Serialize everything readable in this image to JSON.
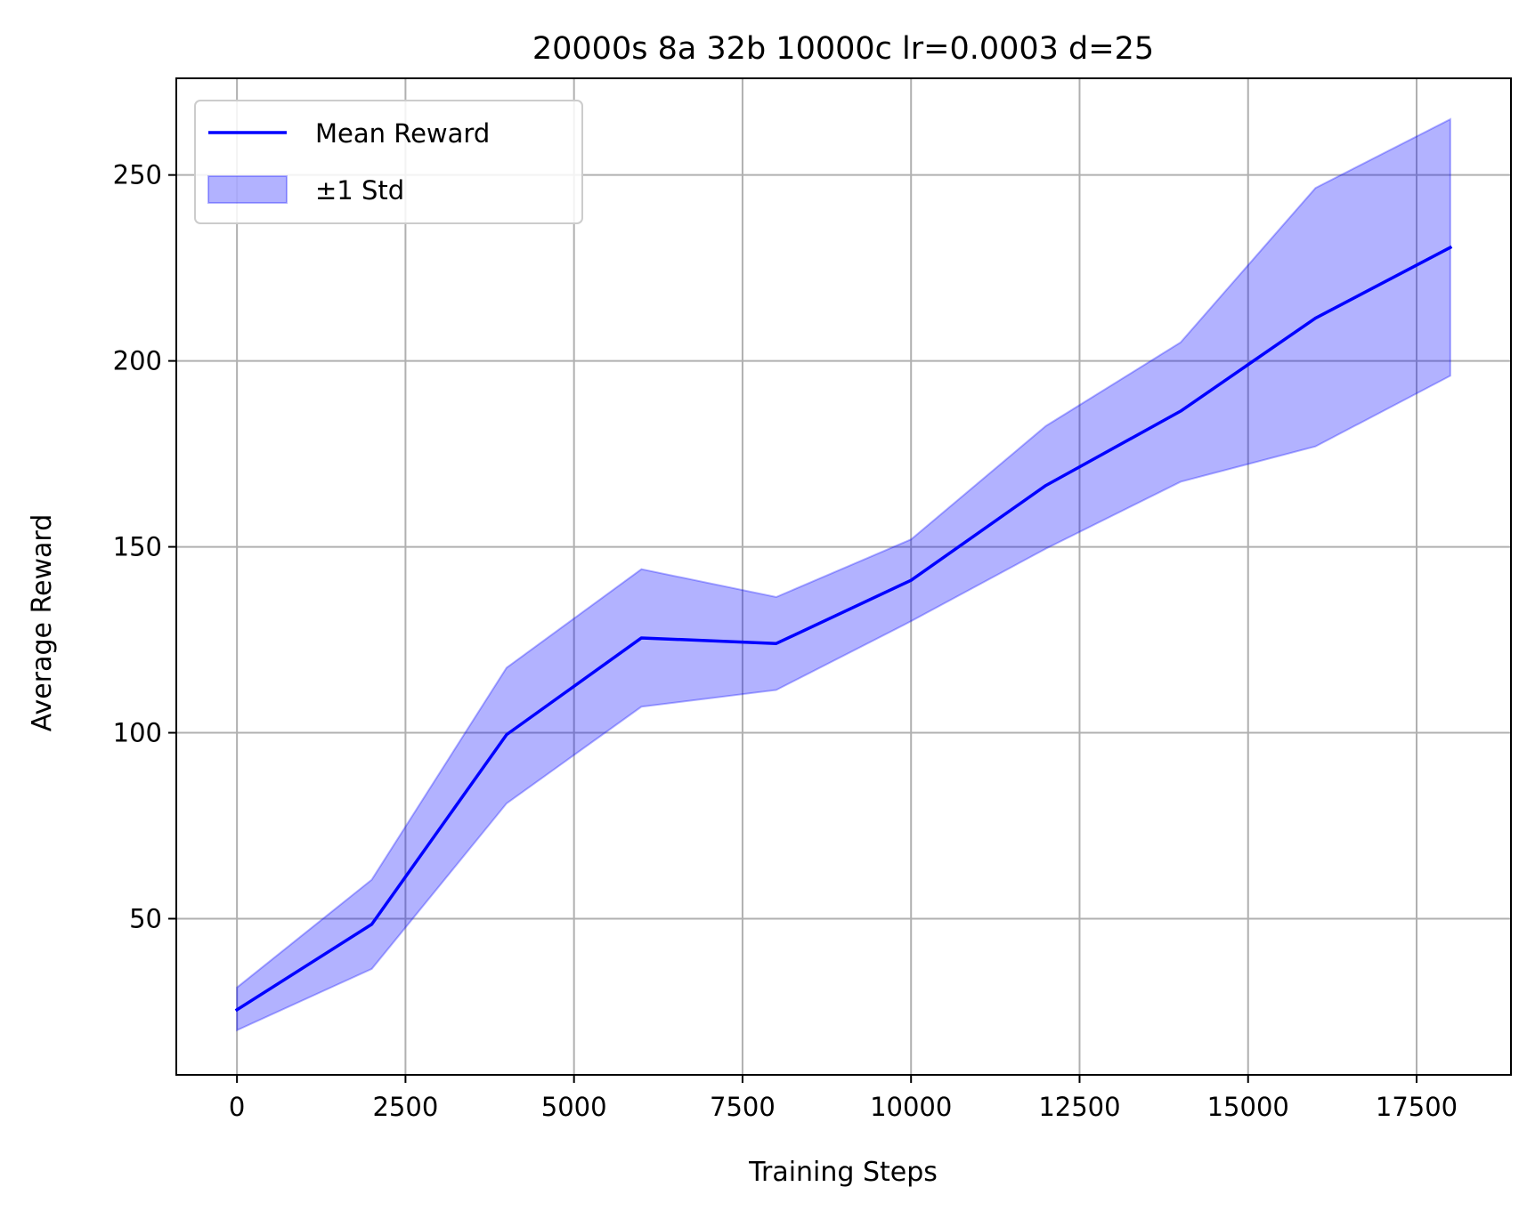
{
  "chart_data": {
    "type": "line",
    "title": "20000s 8a 32b 10000c lr=0.0003 d=25",
    "xlabel": "Training Steps",
    "ylabel": "Average Reward",
    "xlim": [
      -900,
      18900
    ],
    "ylim": [
      8,
      276
    ],
    "xticks": [
      0,
      2500,
      5000,
      7500,
      10000,
      12500,
      15000,
      17500
    ],
    "xtick_labels": [
      "0",
      "2500",
      "5000",
      "7500",
      "10000",
      "12500",
      "15000",
      "17500"
    ],
    "yticks": [
      50,
      100,
      150,
      200,
      250
    ],
    "ytick_labels": [
      "50",
      "100",
      "150",
      "200",
      "250"
    ],
    "grid": true,
    "legend_position": "upper left",
    "x": [
      0,
      2000,
      4000,
      6000,
      8000,
      10000,
      12000,
      14000,
      16000,
      18000
    ],
    "series": [
      {
        "name": "Mean Reward",
        "kind": "line",
        "color": "#0000ff",
        "values": [
          25.5,
          48.5,
          99.5,
          125.5,
          124,
          141,
          166.5,
          186.5,
          211.5,
          230.5
        ]
      },
      {
        "name": "±1 Std",
        "kind": "band",
        "color": "#0000ff",
        "lower": [
          20,
          36.5,
          81,
          107,
          111.5,
          130,
          149.5,
          167.5,
          177,
          196
        ],
        "upper": [
          31.5,
          60.5,
          117.5,
          144,
          136.5,
          152,
          182.5,
          205,
          246.5,
          265
        ]
      }
    ]
  }
}
